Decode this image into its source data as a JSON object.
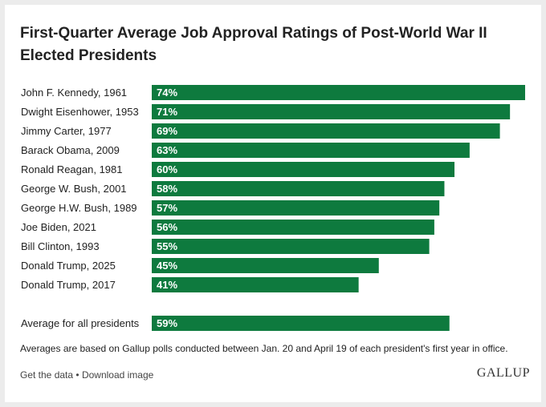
{
  "title": "First-Quarter Average Job Approval Ratings of Post-World War II Elected Presidents",
  "note": "Averages are based on Gallup polls conducted between Jan. 20 and April 19 of each president's first year in office.",
  "footer": {
    "get_data": "Get the data",
    "separator": "•",
    "download": "Download image",
    "brand": "GALLUP"
  },
  "colors": {
    "bar": "#0e7a3e",
    "bar_label": "#ffffff",
    "text": "#222222"
  },
  "chart_data": {
    "type": "bar",
    "orientation": "horizontal",
    "categories": [
      "John F. Kennedy, 1961",
      "Dwight Eisenhower, 1953",
      "Jimmy Carter, 1977",
      "Barack Obama, 2009",
      "Ronald Reagan, 1981",
      "George W. Bush, 2001",
      "George H.W. Bush, 1989",
      "Joe Biden, 2021",
      "Bill Clinton, 1993",
      "Donald Trump, 2025",
      "Donald Trump, 2017"
    ],
    "values": [
      74,
      71,
      69,
      63,
      60,
      58,
      57,
      56,
      55,
      45,
      41
    ],
    "value_labels": [
      "74%",
      "71%",
      "69%",
      "63%",
      "60%",
      "58%",
      "57%",
      "56%",
      "55%",
      "45%",
      "41%"
    ],
    "summary": {
      "label": "Average for all presidents",
      "value": 59,
      "value_label": "59%"
    },
    "xlim": [
      0,
      74
    ],
    "grid": false,
    "legend": "none"
  }
}
